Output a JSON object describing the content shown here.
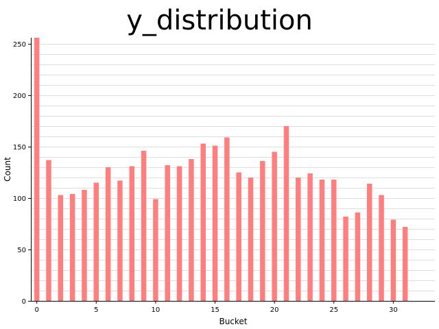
{
  "chart_data": {
    "type": "bar",
    "title": "y_distribution",
    "xlabel": "Bucket",
    "ylabel": "Count",
    "x": [
      0,
      1,
      2,
      3,
      4,
      5,
      6,
      7,
      8,
      9,
      10,
      11,
      12,
      13,
      14,
      15,
      16,
      17,
      18,
      19,
      20,
      21,
      22,
      23,
      24,
      25,
      26,
      27,
      28,
      29,
      30,
      31
    ],
    "values": [
      256,
      137,
      103,
      104,
      108,
      115,
      130,
      117,
      131,
      146,
      99,
      132,
      131,
      138,
      153,
      151,
      159,
      125,
      120,
      136,
      145,
      170,
      120,
      124,
      118,
      118,
      82,
      86,
      114,
      103,
      79,
      72
    ],
    "xlim": [
      -0.5,
      33.5
    ],
    "ylim": [
      0,
      256
    ],
    "xticks": [
      0,
      5,
      10,
      15,
      20,
      25,
      30
    ],
    "yticks": [
      0,
      50,
      100,
      150,
      200,
      250
    ],
    "grid_minor_step": 10,
    "grid": true,
    "bar_color": "#ff7f7f",
    "grid_color": "#dddddd"
  }
}
